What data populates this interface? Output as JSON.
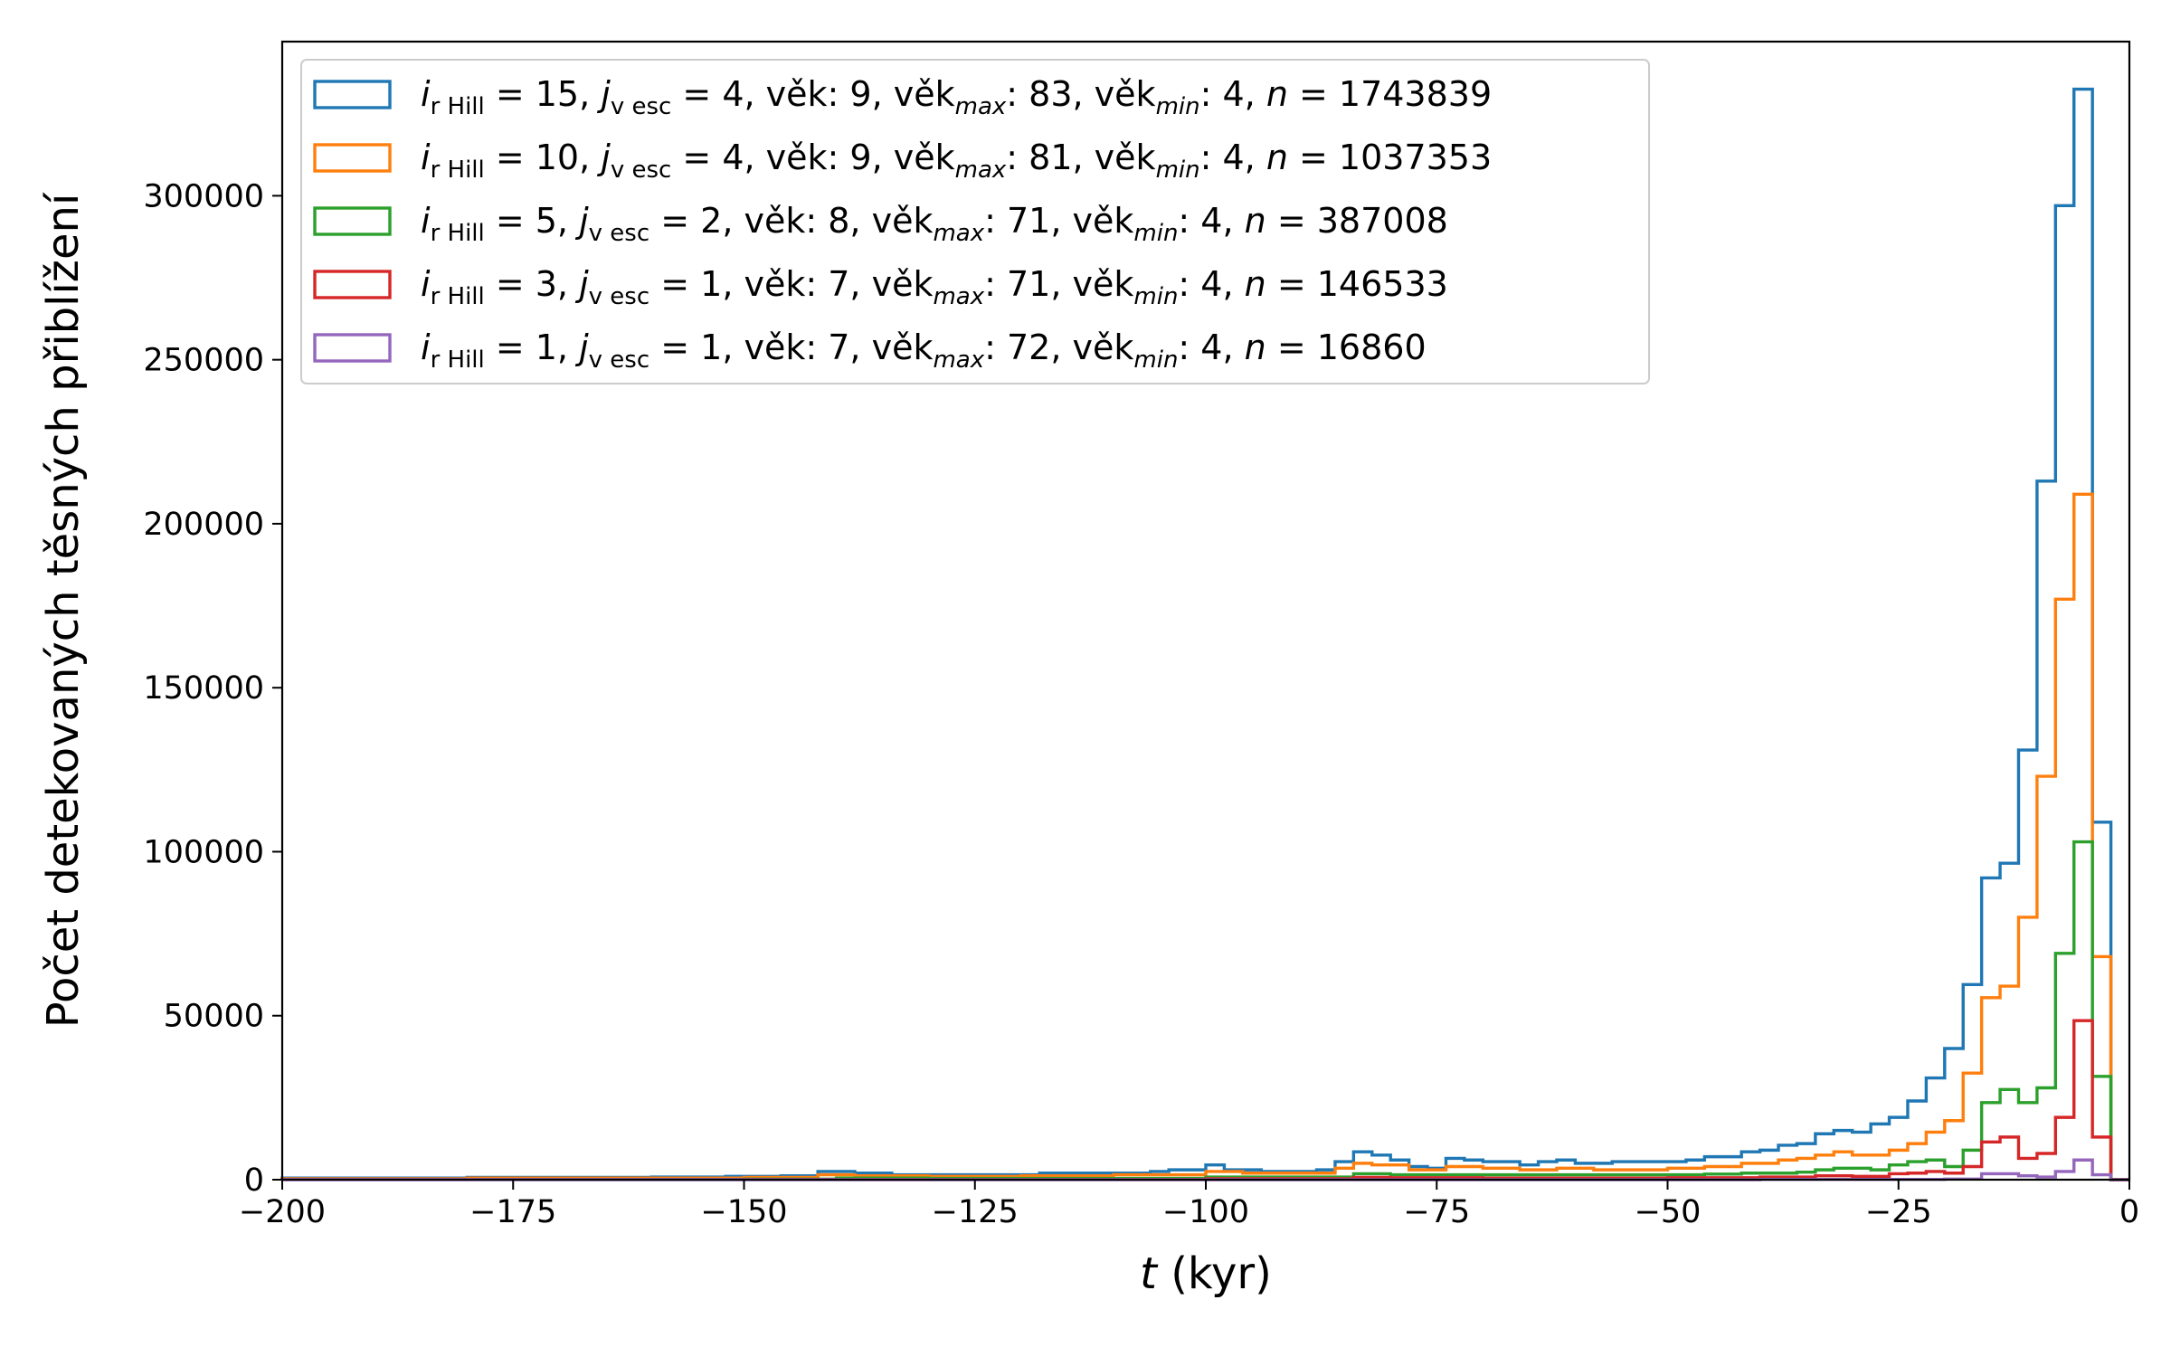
{
  "chart_data": {
    "type": "histogram",
    "xlabel_italic": "t",
    "xlabel_rest": " (kyr)",
    "ylabel": "Počet detekovaných těsných přiblížení",
    "xlim": [
      -200,
      0
    ],
    "ylim": [
      0,
      347000
    ],
    "x_ticks": [
      -200,
      -175,
      -150,
      -125,
      -100,
      -75,
      -50,
      -25,
      0
    ],
    "x_tick_labels": [
      "−200",
      "−175",
      "−150",
      "−125",
      "−100",
      "−75",
      "−50",
      "−25",
      "0"
    ],
    "y_ticks": [
      0,
      50000,
      100000,
      150000,
      200000,
      250000,
      300000
    ],
    "y_tick_labels": [
      "0",
      "50000",
      "100000",
      "150000",
      "200000",
      "250000",
      "300000"
    ],
    "bin_width": 2,
    "legend_position": "top-left",
    "series": [
      {
        "label_parts": [
          "i",
          "r Hill",
          " = 15, ",
          "j",
          "v esc",
          " = 4, věk:   9, věk",
          "max",
          ":  83, věk",
          "min",
          ": 4, ",
          "n",
          " = 1743839"
        ],
        "color": "#1f77b4",
        "bins": [
          {
            "x": -200,
            "v": 500
          },
          {
            "x": -190,
            "v": 500
          },
          {
            "x": -180,
            "v": 700
          },
          {
            "x": -170,
            "v": 700
          },
          {
            "x": -160,
            "v": 800
          },
          {
            "x": -152,
            "v": 1000
          },
          {
            "x": -146,
            "v": 1200
          },
          {
            "x": -142,
            "v": 2500
          },
          {
            "x": -138,
            "v": 2000
          },
          {
            "x": -134,
            "v": 1500
          },
          {
            "x": -126,
            "v": 1500
          },
          {
            "x": -118,
            "v": 2000
          },
          {
            "x": -110,
            "v": 2000
          },
          {
            "x": -106,
            "v": 2500
          },
          {
            "x": -104,
            "v": 3000
          },
          {
            "x": -100,
            "v": 4500
          },
          {
            "x": -98,
            "v": 3000
          },
          {
            "x": -94,
            "v": 2500
          },
          {
            "x": -88,
            "v": 3000
          },
          {
            "x": -86,
            "v": 5500
          },
          {
            "x": -84,
            "v": 8500
          },
          {
            "x": -82,
            "v": 7500
          },
          {
            "x": -80,
            "v": 6000
          },
          {
            "x": -78,
            "v": 4000
          },
          {
            "x": -76,
            "v": 3500
          },
          {
            "x": -74,
            "v": 6500
          },
          {
            "x": -72,
            "v": 6000
          },
          {
            "x": -70,
            "v": 5500
          },
          {
            "x": -66,
            "v": 4500
          },
          {
            "x": -64,
            "v": 5500
          },
          {
            "x": -62,
            "v": 6000
          },
          {
            "x": -60,
            "v": 5000
          },
          {
            "x": -56,
            "v": 5500
          },
          {
            "x": -48,
            "v": 6000
          },
          {
            "x": -46,
            "v": 7000
          },
          {
            "x": -42,
            "v": 8500
          },
          {
            "x": -40,
            "v": 9000
          },
          {
            "x": -38,
            "v": 10500
          },
          {
            "x": -36,
            "v": 11000
          },
          {
            "x": -34,
            "v": 14000
          },
          {
            "x": -32,
            "v": 15000
          },
          {
            "x": -30,
            "v": 14500
          },
          {
            "x": -28,
            "v": 17000
          },
          {
            "x": -26,
            "v": 19000
          },
          {
            "x": -24,
            "v": 24000
          },
          {
            "x": -22,
            "v": 31000
          },
          {
            "x": -20,
            "v": 40000
          },
          {
            "x": -18,
            "v": 59500
          },
          {
            "x": -16,
            "v": 92000
          },
          {
            "x": -14,
            "v": 96500
          },
          {
            "x": -12,
            "v": 131000
          },
          {
            "x": -10,
            "v": 213000
          },
          {
            "x": -8,
            "v": 297000
          },
          {
            "x": -6,
            "v": 332500
          },
          {
            "x": -4,
            "v": 109000
          },
          {
            "x": -2,
            "v": 0
          }
        ]
      },
      {
        "label_parts": [
          "i",
          "r Hill",
          " = 10, ",
          "j",
          "v esc",
          " = 4, věk:   9, věk",
          "max",
          ":  81, věk",
          "min",
          ": 4, ",
          "n",
          " = 1037353"
        ],
        "color": "#ff7f0e",
        "bins": [
          {
            "x": -200,
            "v": 300
          },
          {
            "x": -180,
            "v": 500
          },
          {
            "x": -160,
            "v": 500
          },
          {
            "x": -150,
            "v": 700
          },
          {
            "x": -142,
            "v": 1500
          },
          {
            "x": -138,
            "v": 1200
          },
          {
            "x": -130,
            "v": 1000
          },
          {
            "x": -120,
            "v": 1200
          },
          {
            "x": -110,
            "v": 1500
          },
          {
            "x": -100,
            "v": 2500
          },
          {
            "x": -96,
            "v": 2000
          },
          {
            "x": -88,
            "v": 2000
          },
          {
            "x": -86,
            "v": 3500
          },
          {
            "x": -84,
            "v": 5000
          },
          {
            "x": -82,
            "v": 4500
          },
          {
            "x": -78,
            "v": 3000
          },
          {
            "x": -74,
            "v": 4000
          },
          {
            "x": -70,
            "v": 3500
          },
          {
            "x": -66,
            "v": 3000
          },
          {
            "x": -62,
            "v": 3500
          },
          {
            "x": -58,
            "v": 3000
          },
          {
            "x": -50,
            "v": 3500
          },
          {
            "x": -46,
            "v": 4000
          },
          {
            "x": -42,
            "v": 5000
          },
          {
            "x": -38,
            "v": 6000
          },
          {
            "x": -36,
            "v": 6500
          },
          {
            "x": -34,
            "v": 7500
          },
          {
            "x": -32,
            "v": 8500
          },
          {
            "x": -30,
            "v": 7500
          },
          {
            "x": -26,
            "v": 9000
          },
          {
            "x": -24,
            "v": 11000
          },
          {
            "x": -22,
            "v": 14500
          },
          {
            "x": -20,
            "v": 18000
          },
          {
            "x": -18,
            "v": 32500
          },
          {
            "x": -16,
            "v": 55500
          },
          {
            "x": -14,
            "v": 59000
          },
          {
            "x": -12,
            "v": 80000
          },
          {
            "x": -10,
            "v": 123000
          },
          {
            "x": -8,
            "v": 177000
          },
          {
            "x": -6,
            "v": 209000
          },
          {
            "x": -4,
            "v": 68000
          },
          {
            "x": -2,
            "v": 0
          }
        ]
      },
      {
        "label_parts": [
          "i",
          "r Hill",
          " =  5, ",
          "j",
          "v esc",
          " = 2, věk:   8, věk",
          "max",
          ":  71, věk",
          "min",
          ": 4, ",
          "n",
          " = 387008"
        ],
        "color": "#2ca02c",
        "bins": [
          {
            "x": -200,
            "v": 100
          },
          {
            "x": -150,
            "v": 200
          },
          {
            "x": -140,
            "v": 500
          },
          {
            "x": -130,
            "v": 400
          },
          {
            "x": -100,
            "v": 800
          },
          {
            "x": -90,
            "v": 800
          },
          {
            "x": -84,
            "v": 1800
          },
          {
            "x": -80,
            "v": 1500
          },
          {
            "x": -74,
            "v": 1500
          },
          {
            "x": -66,
            "v": 1500
          },
          {
            "x": -56,
            "v": 1500
          },
          {
            "x": -46,
            "v": 1700
          },
          {
            "x": -42,
            "v": 2000
          },
          {
            "x": -38,
            "v": 2000
          },
          {
            "x": -36,
            "v": 2300
          },
          {
            "x": -34,
            "v": 3000
          },
          {
            "x": -32,
            "v": 3500
          },
          {
            "x": -28,
            "v": 3000
          },
          {
            "x": -26,
            "v": 4500
          },
          {
            "x": -24,
            "v": 5500
          },
          {
            "x": -22,
            "v": 6000
          },
          {
            "x": -20,
            "v": 4000
          },
          {
            "x": -18,
            "v": 9000
          },
          {
            "x": -16,
            "v": 23500
          },
          {
            "x": -14,
            "v": 27500
          },
          {
            "x": -12,
            "v": 23500
          },
          {
            "x": -10,
            "v": 28000
          },
          {
            "x": -8,
            "v": 69000
          },
          {
            "x": -6,
            "v": 103000
          },
          {
            "x": -4,
            "v": 31500
          },
          {
            "x": -2,
            "v": 0
          }
        ]
      },
      {
        "label_parts": [
          "i",
          "r Hill",
          " =  3, ",
          "j",
          "v esc",
          " = 1, věk:   7, věk",
          "max",
          ":  71, věk",
          "min",
          ": 4, ",
          "n",
          " = 146533"
        ],
        "color": "#d62728",
        "bins": [
          {
            "x": -200,
            "v": 50
          },
          {
            "x": -100,
            "v": 300
          },
          {
            "x": -84,
            "v": 700
          },
          {
            "x": -80,
            "v": 600
          },
          {
            "x": -70,
            "v": 500
          },
          {
            "x": -50,
            "v": 600
          },
          {
            "x": -40,
            "v": 800
          },
          {
            "x": -34,
            "v": 1200
          },
          {
            "x": -30,
            "v": 1000
          },
          {
            "x": -26,
            "v": 1800
          },
          {
            "x": -24,
            "v": 2000
          },
          {
            "x": -22,
            "v": 2500
          },
          {
            "x": -20,
            "v": 2000
          },
          {
            "x": -18,
            "v": 4000
          },
          {
            "x": -16,
            "v": 11500
          },
          {
            "x": -14,
            "v": 13000
          },
          {
            "x": -12,
            "v": 6500
          },
          {
            "x": -10,
            "v": 8000
          },
          {
            "x": -8,
            "v": 19000
          },
          {
            "x": -6,
            "v": 48500
          },
          {
            "x": -4,
            "v": 13000
          },
          {
            "x": -2,
            "v": 0
          }
        ]
      },
      {
        "label_parts": [
          "i",
          "r Hill",
          " =  1, ",
          "j",
          "v esc",
          " = 1, věk:   7, věk",
          "max",
          ":  72, věk",
          "min",
          ": 4, ",
          "n",
          " = 16860"
        ],
        "color": "#9467bd",
        "bins": [
          {
            "x": -200,
            "v": 0
          },
          {
            "x": -40,
            "v": 100
          },
          {
            "x": -20,
            "v": 200
          },
          {
            "x": -16,
            "v": 1800
          },
          {
            "x": -12,
            "v": 1200
          },
          {
            "x": -10,
            "v": 800
          },
          {
            "x": -8,
            "v": 2500
          },
          {
            "x": -6,
            "v": 6000
          },
          {
            "x": -4,
            "v": 1500
          },
          {
            "x": -2,
            "v": 0
          }
        ]
      }
    ]
  }
}
